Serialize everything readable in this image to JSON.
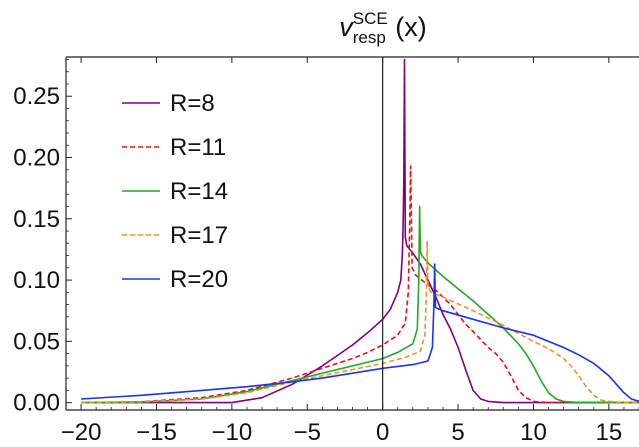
{
  "chart_data": {
    "type": "line",
    "title": {
      "symbol": "v",
      "superscript": "SCE",
      "subscript": "resp",
      "argument": " (x)"
    },
    "xlabel": "",
    "ylabel": "",
    "xlim": [
      -21,
      17
    ],
    "ylim": [
      -0.006,
      0.282
    ],
    "x_ticks": [
      -20,
      -15,
      -10,
      -5,
      0,
      5,
      10,
      15
    ],
    "x_tick_labels": [
      "−20",
      "−15",
      "−10",
      "−5",
      "0",
      "5",
      "10",
      "15"
    ],
    "y_ticks": [
      0.0,
      0.05,
      0.1,
      0.15,
      0.2,
      0.25
    ],
    "y_tick_labels": [
      "0.00",
      "0.05",
      "0.10",
      "0.15",
      "0.20",
      "0.25"
    ],
    "grid": false,
    "legend_position": "top-left",
    "series": [
      {
        "name": "R=8",
        "color": "#800080",
        "dash": "solid",
        "x": [
          -20,
          -15,
          -10,
          -8,
          -6,
          -4,
          -2,
          -1,
          0,
          0.5,
          1.0,
          1.2,
          1.3,
          1.35,
          1.4,
          1.45,
          1.5,
          1.6,
          2.0,
          2.5,
          3.0,
          3.5,
          4.0,
          4.5,
          5.0,
          5.5,
          6.0,
          6.5,
          7.0,
          8.0,
          10.0,
          15.0,
          17.0
        ],
        "y": [
          0.0,
          0.0,
          0.0,
          0.004,
          0.015,
          0.03,
          0.047,
          0.057,
          0.068,
          0.076,
          0.09,
          0.1,
          0.12,
          0.14,
          0.18,
          0.28,
          0.135,
          0.128,
          0.122,
          0.113,
          0.1,
          0.087,
          0.072,
          0.06,
          0.045,
          0.027,
          0.01,
          0.003,
          0.001,
          0.0,
          0.0,
          0.0,
          0.0
        ]
      },
      {
        "name": "R=11",
        "color": "#e8101b",
        "dash": "dashed",
        "x": [
          -20,
          -16,
          -12,
          -9,
          -6,
          -4,
          -2,
          -1,
          0,
          1.0,
          1.5,
          1.7,
          1.8,
          1.85,
          1.95,
          2.2,
          2.6,
          3.0,
          3.5,
          4.0,
          4.5,
          5.0,
          5.5,
          6.0,
          7.0,
          7.5,
          8.0,
          8.5,
          9.0,
          9.5,
          10.0,
          11.0,
          15.0,
          17.0
        ],
        "y": [
          0.0,
          0.0008,
          0.004,
          0.01,
          0.02,
          0.028,
          0.036,
          0.041,
          0.047,
          0.055,
          0.065,
          0.09,
          0.15,
          0.193,
          0.11,
          0.104,
          0.1,
          0.096,
          0.092,
          0.086,
          0.08,
          0.072,
          0.064,
          0.058,
          0.045,
          0.04,
          0.033,
          0.022,
          0.01,
          0.004,
          0.001,
          0.0,
          0.0,
          0.0
        ]
      },
      {
        "name": "R=14",
        "color": "#22aa22",
        "dash": "solid",
        "x": [
          -20,
          -16,
          -12,
          -9,
          -6,
          -4,
          -2,
          0,
          1,
          2.0,
          2.3,
          2.4,
          2.45,
          2.5,
          2.6,
          3.0,
          4.0,
          5.0,
          6.0,
          7.0,
          8.0,
          9.0,
          9.5,
          10.0,
          10.5,
          11.0,
          11.5,
          12.0,
          13.0,
          15.0,
          17.0
        ],
        "y": [
          0.0,
          0.0006,
          0.003,
          0.009,
          0.018,
          0.024,
          0.03,
          0.036,
          0.041,
          0.048,
          0.06,
          0.1,
          0.16,
          0.123,
          0.12,
          0.114,
          0.103,
          0.093,
          0.083,
          0.072,
          0.061,
          0.048,
          0.04,
          0.03,
          0.018,
          0.008,
          0.003,
          0.001,
          0.0,
          0.0,
          0.0
        ]
      },
      {
        "name": "R=17",
        "color": "#f5902a",
        "dash": "dashed",
        "x": [
          -20,
          -16,
          -12,
          -9,
          -6,
          -4,
          -2,
          0,
          1.5,
          2.5,
          2.8,
          2.9,
          2.95,
          3.0,
          3.2,
          4.0,
          6.0,
          8.0,
          10.0,
          11.0,
          12.0,
          12.5,
          13.0,
          13.5,
          14.0,
          14.5,
          15.0,
          16.0,
          17.0
        ],
        "y": [
          0.0,
          0.0005,
          0.003,
          0.008,
          0.017,
          0.022,
          0.027,
          0.032,
          0.037,
          0.042,
          0.055,
          0.09,
          0.132,
          0.095,
          0.09,
          0.086,
          0.075,
          0.063,
          0.05,
          0.044,
          0.036,
          0.03,
          0.022,
          0.013,
          0.006,
          0.002,
          0.001,
          0.0,
          0.0
        ]
      },
      {
        "name": "R=20",
        "color": "#1a33f0",
        "dash": "solid",
        "x": [
          -20,
          -16,
          -12,
          -9,
          -6,
          -4,
          -2,
          0,
          2.0,
          3.0,
          3.3,
          3.4,
          3.45,
          3.5,
          3.6,
          4.0,
          6.0,
          8.0,
          10.0,
          12.0,
          13.0,
          14.0,
          15.0,
          15.5,
          16.0,
          16.5,
          17.0
        ],
        "y": [
          0.003,
          0.006,
          0.01,
          0.013,
          0.017,
          0.02,
          0.024,
          0.028,
          0.031,
          0.034,
          0.045,
          0.08,
          0.113,
          0.078,
          0.077,
          0.075,
          0.068,
          0.061,
          0.055,
          0.045,
          0.039,
          0.032,
          0.022,
          0.015,
          0.008,
          0.003,
          0.001
        ]
      }
    ]
  }
}
